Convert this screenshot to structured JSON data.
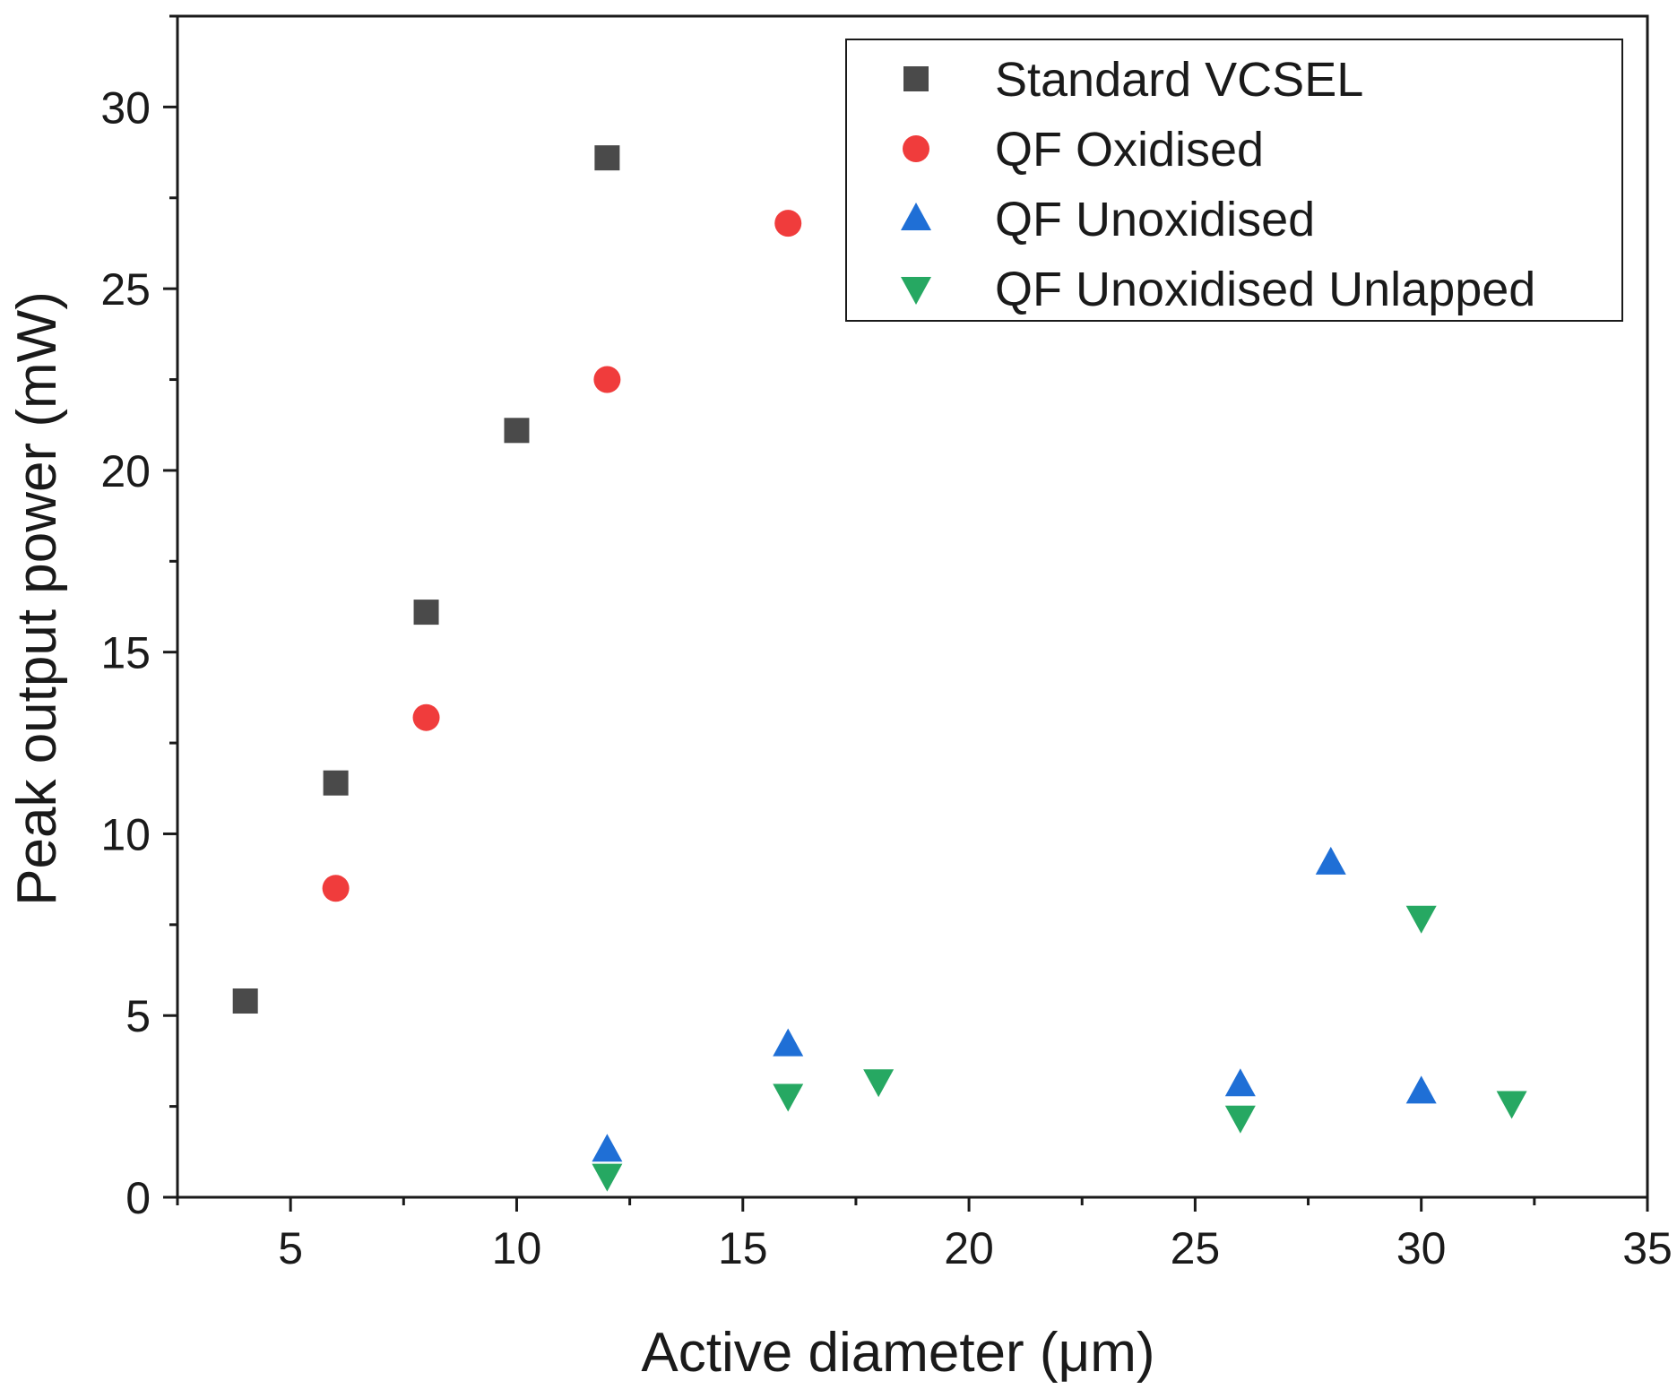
{
  "chart_data": {
    "type": "scatter",
    "title": "",
    "xlabel": "Active diameter (μm)",
    "ylabel": "Peak output power (mW)",
    "xlim": [
      2.5,
      35
    ],
    "ylim": [
      0,
      32.5
    ],
    "xticks": [
      5,
      10,
      15,
      20,
      25,
      30,
      35
    ],
    "xtick_labels": [
      "5",
      "10",
      "15",
      "20",
      "25",
      "30",
      "35"
    ],
    "yticks": [
      0,
      5,
      10,
      15,
      20,
      25,
      30
    ],
    "ytick_labels": [
      "0",
      "5",
      "10",
      "15",
      "20",
      "25",
      "30"
    ],
    "grid": false,
    "legend_position": "top-right",
    "series": [
      {
        "name": "Standard VCSEL",
        "marker": "square",
        "color": "#4a4a4a",
        "x": [
          4,
          6,
          8,
          10,
          12
        ],
        "y": [
          5.4,
          11.4,
          16.1,
          21.1,
          28.6
        ]
      },
      {
        "name": "QF Oxidised",
        "marker": "circle",
        "color": "#f03c3c",
        "x": [
          6,
          8,
          12,
          16
        ],
        "y": [
          8.5,
          13.2,
          22.5,
          26.8
        ]
      },
      {
        "name": "QF Unoxidised",
        "marker": "triangle-up",
        "color": "#1f6fd6",
        "x": [
          12,
          16,
          26,
          28,
          30
        ],
        "y": [
          1.3,
          4.2,
          3.1,
          9.2,
          2.9
        ]
      },
      {
        "name": "QF Unoxidised Unlapped",
        "marker": "triangle-down",
        "color": "#26a862",
        "x": [
          12,
          16,
          18,
          26,
          30,
          32
        ],
        "y": [
          0.6,
          2.8,
          3.2,
          2.2,
          7.7,
          2.6
        ]
      }
    ]
  }
}
